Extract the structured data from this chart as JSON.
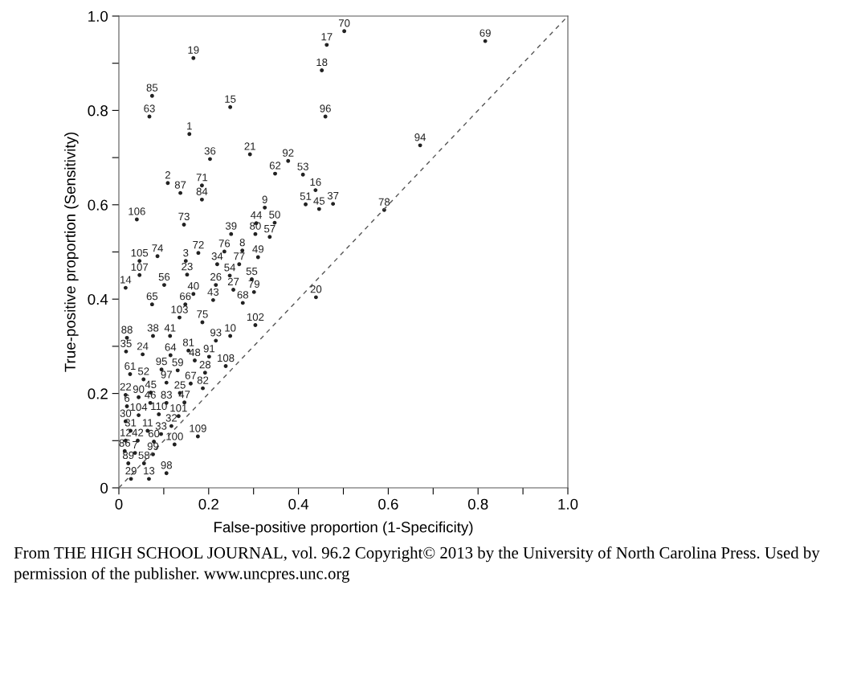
{
  "chart_data": {
    "type": "scatter",
    "xlabel": "False-positive proportion (1-Specificity)",
    "ylabel": "True-positive proportion (Sensitivity)",
    "xlim": [
      0,
      1
    ],
    "ylim": [
      0,
      1
    ],
    "xticks": [
      0,
      {
        "value": 0.1,
        "label": null
      },
      0.2,
      {
        "value": 0.3,
        "label": null
      },
      0.4,
      {
        "value": 0.5,
        "label": null
      },
      0.6,
      {
        "value": 0.7,
        "label": null
      },
      0.8,
      {
        "value": 0.9,
        "label": null
      },
      {
        "value": 1,
        "label": "1.0"
      }
    ],
    "yticks": [
      0,
      {
        "value": 0.1,
        "label": null
      },
      0.2,
      {
        "value": 0.3,
        "label": null
      },
      0.4,
      {
        "value": 0.5,
        "label": null
      },
      0.6,
      {
        "value": 0.7,
        "label": null
      },
      0.8,
      {
        "value": 0.9,
        "label": null
      },
      {
        "value": 1,
        "label": "1.0"
      }
    ],
    "grid": false,
    "legend": false,
    "series": [
      {
        "marker": "circle",
        "color": "#222222",
        "x": [
          0.502,
          0.463,
          0.816,
          0.166,
          0.452,
          0.074,
          0.248,
          0.068,
          0.46,
          0.157,
          0.671,
          0.292,
          0.203,
          0.377,
          0.348,
          0.41,
          0.109,
          0.185,
          0.137,
          0.438,
          0.185,
          0.325,
          0.416,
          0.446,
          0.477,
          0.591,
          0.04,
          0.145,
          0.306,
          0.347,
          0.25,
          0.304,
          0.336,
          0.177,
          0.235,
          0.275,
          0.046,
          0.086,
          0.149,
          0.31,
          0.219,
          0.268,
          0.046,
          0.152,
          0.247,
          0.296,
          0.101,
          0.216,
          0.015,
          0.255,
          0.301,
          0.166,
          0.439,
          0.21,
          0.074,
          0.148,
          0.276,
          0.135,
          0.186,
          0.304,
          0.018,
          0.076,
          0.114,
          0.248,
          0.216,
          0.016,
          0.053,
          0.115,
          0.155,
          0.201,
          0.169,
          0.238,
          0.095,
          0.131,
          0.192,
          0.025,
          0.055,
          0.106,
          0.16,
          0.187,
          0.015,
          0.044,
          0.071,
          0.136,
          0.07,
          0.106,
          0.146,
          0.018,
          0.044,
          0.089,
          0.133,
          0.015,
          0.117,
          0.026,
          0.064,
          0.094,
          0.176,
          0.015,
          0.042,
          0.078,
          0.124,
          0.013,
          0.036,
          0.076,
          0.021,
          0.056,
          0.106,
          0.027,
          0.067
        ],
        "values": [
          0.968,
          0.939,
          0.947,
          0.911,
          0.885,
          0.831,
          0.807,
          0.787,
          0.787,
          0.75,
          0.726,
          0.707,
          0.697,
          0.693,
          0.666,
          0.664,
          0.646,
          0.641,
          0.625,
          0.631,
          0.611,
          0.594,
          0.601,
          0.591,
          0.602,
          0.589,
          0.569,
          0.558,
          0.561,
          0.562,
          0.538,
          0.538,
          0.532,
          0.498,
          0.501,
          0.503,
          0.481,
          0.491,
          0.481,
          0.489,
          0.474,
          0.474,
          0.451,
          0.452,
          0.45,
          0.442,
          0.43,
          0.43,
          0.424,
          0.42,
          0.415,
          0.411,
          0.404,
          0.398,
          0.389,
          0.389,
          0.392,
          0.361,
          0.351,
          0.345,
          0.318,
          0.322,
          0.322,
          0.322,
          0.312,
          0.289,
          0.283,
          0.281,
          0.291,
          0.278,
          0.27,
          0.258,
          0.251,
          0.249,
          0.244,
          0.241,
          0.23,
          0.223,
          0.221,
          0.211,
          0.197,
          0.192,
          0.202,
          0.201,
          0.18,
          0.18,
          0.181,
          0.173,
          0.154,
          0.156,
          0.152,
          0.141,
          0.131,
          0.121,
          0.121,
          0.114,
          0.109,
          0.1,
          0.1,
          0.098,
          0.092,
          0.078,
          0.074,
          0.071,
          0.052,
          0.052,
          0.031,
          0.019,
          0.019
        ]
      },
      {
        "type": "line",
        "color": "#555555",
        "line_style": "dashed",
        "x": [
          0,
          1
        ],
        "values": [
          0,
          1
        ]
      }
    ],
    "annotations": [
      "From THE HIGH SCHOOL JOURNAL, vol. 96.2 Copyright© 2013 by the University of North Carolina Press. Used by permission of the publisher. www.uncpres.unc.org",
      {
        "text": "70",
        "x": 0.502,
        "y": 0.968
      },
      {
        "text": "17",
        "x": 0.463,
        "y": 0.939
      },
      {
        "text": "69",
        "x": 0.816,
        "y": 0.947
      },
      {
        "text": "19",
        "x": 0.166,
        "y": 0.911
      },
      {
        "text": "18",
        "x": 0.452,
        "y": 0.885
      },
      {
        "text": "85",
        "x": 0.074,
        "y": 0.831
      },
      {
        "text": "15",
        "x": 0.248,
        "y": 0.807
      },
      {
        "text": "63",
        "x": 0.068,
        "y": 0.787
      },
      {
        "text": "96",
        "x": 0.46,
        "y": 0.787
      },
      {
        "text": "1",
        "x": 0.157,
        "y": 0.75
      },
      {
        "text": "94",
        "x": 0.671,
        "y": 0.726
      },
      {
        "text": "21",
        "x": 0.292,
        "y": 0.707
      },
      {
        "text": "36",
        "x": 0.203,
        "y": 0.697
      },
      {
        "text": "92",
        "x": 0.377,
        "y": 0.693
      },
      {
        "text": "62",
        "x": 0.348,
        "y": 0.666
      },
      {
        "text": "53",
        "x": 0.41,
        "y": 0.664
      },
      {
        "text": "2",
        "x": 0.109,
        "y": 0.646
      },
      {
        "text": "71",
        "x": 0.185,
        "y": 0.641
      },
      {
        "text": "87",
        "x": 0.137,
        "y": 0.625
      },
      {
        "text": "16",
        "x": 0.438,
        "y": 0.631
      },
      {
        "text": "84",
        "x": 0.185,
        "y": 0.611
      },
      {
        "text": "9",
        "x": 0.325,
        "y": 0.594
      },
      {
        "text": "51",
        "x": 0.416,
        "y": 0.601
      },
      {
        "text": "45",
        "x": 0.446,
        "y": 0.591
      },
      {
        "text": "37",
        "x": 0.477,
        "y": 0.602
      },
      {
        "text": "78",
        "x": 0.591,
        "y": 0.589
      },
      {
        "text": "106",
        "x": 0.04,
        "y": 0.569
      },
      {
        "text": "73",
        "x": 0.145,
        "y": 0.558
      },
      {
        "text": "44",
        "x": 0.306,
        "y": 0.561
      },
      {
        "text": "50",
        "x": 0.347,
        "y": 0.562
      },
      {
        "text": "39",
        "x": 0.25,
        "y": 0.538
      },
      {
        "text": "80",
        "x": 0.304,
        "y": 0.538
      },
      {
        "text": "57",
        "x": 0.336,
        "y": 0.532
      },
      {
        "text": "72",
        "x": 0.177,
        "y": 0.498
      },
      {
        "text": "76",
        "x": 0.235,
        "y": 0.501
      },
      {
        "text": "8",
        "x": 0.275,
        "y": 0.503
      },
      {
        "text": "105",
        "x": 0.046,
        "y": 0.481
      },
      {
        "text": "74",
        "x": 0.086,
        "y": 0.491
      },
      {
        "text": "3",
        "x": 0.149,
        "y": 0.481
      },
      {
        "text": "49",
        "x": 0.31,
        "y": 0.489
      },
      {
        "text": "34",
        "x": 0.219,
        "y": 0.474
      },
      {
        "text": "77",
        "x": 0.268,
        "y": 0.474
      },
      {
        "text": "107",
        "x": 0.046,
        "y": 0.451
      },
      {
        "text": "23",
        "x": 0.152,
        "y": 0.452
      },
      {
        "text": "54",
        "x": 0.247,
        "y": 0.45
      },
      {
        "text": "55",
        "x": 0.296,
        "y": 0.442
      },
      {
        "text": "56",
        "x": 0.101,
        "y": 0.43
      },
      {
        "text": "26",
        "x": 0.216,
        "y": 0.43
      },
      {
        "text": "14",
        "x": 0.015,
        "y": 0.424
      },
      {
        "text": "27",
        "x": 0.255,
        "y": 0.42
      },
      {
        "text": "79",
        "x": 0.301,
        "y": 0.415
      },
      {
        "text": "40",
        "x": 0.166,
        "y": 0.411
      },
      {
        "text": "20",
        "x": 0.439,
        "y": 0.404
      },
      {
        "text": "43",
        "x": 0.21,
        "y": 0.398
      },
      {
        "text": "65",
        "x": 0.074,
        "y": 0.389
      },
      {
        "text": "66",
        "x": 0.148,
        "y": 0.389
      },
      {
        "text": "68",
        "x": 0.276,
        "y": 0.392
      },
      {
        "text": "103",
        "x": 0.135,
        "y": 0.361
      },
      {
        "text": "75",
        "x": 0.186,
        "y": 0.351
      },
      {
        "text": "102",
        "x": 0.304,
        "y": 0.345
      },
      {
        "text": "88",
        "x": 0.018,
        "y": 0.318
      },
      {
        "text": "38",
        "x": 0.076,
        "y": 0.322
      },
      {
        "text": "41",
        "x": 0.114,
        "y": 0.322
      },
      {
        "text": "10",
        "x": 0.248,
        "y": 0.322
      },
      {
        "text": "93",
        "x": 0.216,
        "y": 0.312
      },
      {
        "text": "35",
        "x": 0.016,
        "y": 0.289
      },
      {
        "text": "24",
        "x": 0.053,
        "y": 0.283
      },
      {
        "text": "64",
        "x": 0.115,
        "y": 0.281
      },
      {
        "text": "81",
        "x": 0.155,
        "y": 0.291
      },
      {
        "text": "91",
        "x": 0.201,
        "y": 0.278
      },
      {
        "text": "48",
        "x": 0.169,
        "y": 0.27
      },
      {
        "text": "108",
        "x": 0.238,
        "y": 0.258
      },
      {
        "text": "95",
        "x": 0.095,
        "y": 0.251
      },
      {
        "text": "59",
        "x": 0.131,
        "y": 0.249
      },
      {
        "text": "28",
        "x": 0.192,
        "y": 0.244
      },
      {
        "text": "61",
        "x": 0.025,
        "y": 0.241
      },
      {
        "text": "52",
        "x": 0.055,
        "y": 0.23
      },
      {
        "text": "97",
        "x": 0.106,
        "y": 0.223
      },
      {
        "text": "67",
        "x": 0.16,
        "y": 0.221
      },
      {
        "text": "82",
        "x": 0.187,
        "y": 0.211
      },
      {
        "text": "22",
        "x": 0.015,
        "y": 0.197
      },
      {
        "text": "90",
        "x": 0.044,
        "y": 0.192
      },
      {
        "text": "45",
        "x": 0.071,
        "y": 0.202
      },
      {
        "text": "25",
        "x": 0.136,
        "y": 0.201
      },
      {
        "text": "46",
        "x": 0.07,
        "y": 0.18
      },
      {
        "text": "83",
        "x": 0.106,
        "y": 0.18
      },
      {
        "text": "47",
        "x": 0.146,
        "y": 0.181
      },
      {
        "text": "6",
        "x": 0.018,
        "y": 0.173
      },
      {
        "text": "104",
        "x": 0.044,
        "y": 0.154
      },
      {
        "text": "110",
        "x": 0.089,
        "y": 0.156
      },
      {
        "text": "101",
        "x": 0.133,
        "y": 0.152
      },
      {
        "text": "30",
        "x": 0.015,
        "y": 0.141
      },
      {
        "text": "32",
        "x": 0.117,
        "y": 0.131
      },
      {
        "text": "31",
        "x": 0.026,
        "y": 0.121
      },
      {
        "text": "11",
        "x": 0.064,
        "y": 0.121
      },
      {
        "text": "33",
        "x": 0.094,
        "y": 0.114
      },
      {
        "text": "109",
        "x": 0.176,
        "y": 0.109
      },
      {
        "text": "12",
        "x": 0.015,
        "y": 0.1
      },
      {
        "text": "42",
        "x": 0.042,
        "y": 0.1
      },
      {
        "text": "60",
        "x": 0.078,
        "y": 0.098
      },
      {
        "text": "100",
        "x": 0.124,
        "y": 0.092
      },
      {
        "text": "86",
        "x": 0.013,
        "y": 0.078
      },
      {
        "text": "7",
        "x": 0.036,
        "y": 0.074
      },
      {
        "text": "99",
        "x": 0.076,
        "y": 0.071
      },
      {
        "text": "89",
        "x": 0.021,
        "y": 0.052
      },
      {
        "text": "58",
        "x": 0.056,
        "y": 0.052
      },
      {
        "text": "98",
        "x": 0.106,
        "y": 0.031
      },
      {
        "text": "29",
        "x": 0.027,
        "y": 0.019
      },
      {
        "text": "13",
        "x": 0.067,
        "y": 0.019
      }
    ]
  }
}
